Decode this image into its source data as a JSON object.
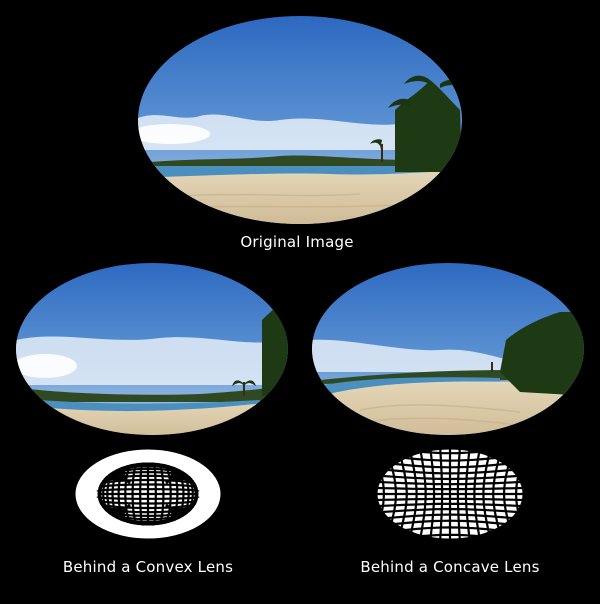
{
  "captions": {
    "original": "Original Image",
    "convex": "Behind a Convex Lens",
    "concave": "Behind a Concave Lens"
  },
  "colors": {
    "background": "#000000",
    "sky_top": "#2f6fc4",
    "sky_horizon": "#bcd4ea",
    "sea": "#3f87b8",
    "sand": "#d9c7a4",
    "palm_green": "#1f3d14",
    "grid_line": "#000000",
    "grid_fill": "#ffffff"
  },
  "icons": [
    "palm-tree-icon",
    "lens-grid-icon"
  ]
}
